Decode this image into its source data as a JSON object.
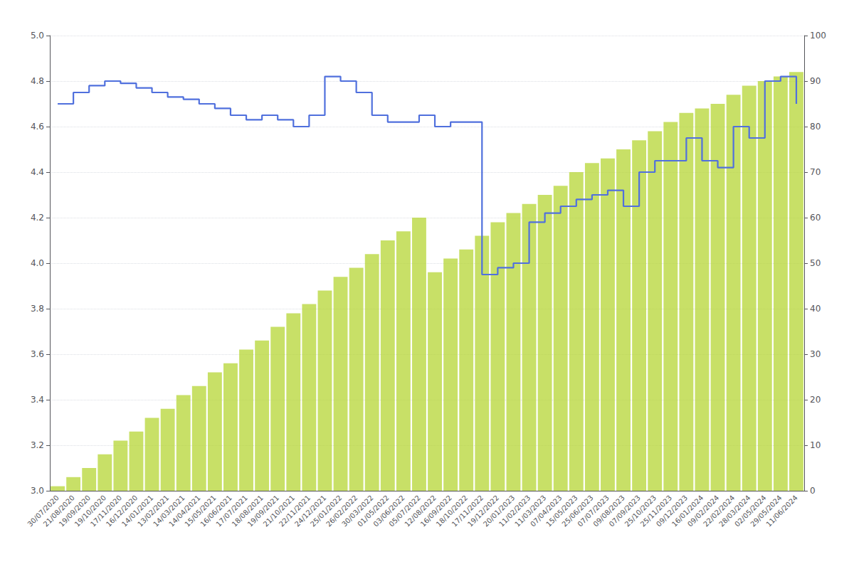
{
  "chart_data": {
    "type": "combo",
    "categories": [
      "30/07/2020",
      "21/08/2020",
      "19/09/2020",
      "19/10/2020",
      "17/11/2020",
      "16/12/2020",
      "14/01/2021",
      "13/02/2021",
      "14/03/2021",
      "14/04/2021",
      "15/05/2021",
      "16/06/2021",
      "17/07/2021",
      "18/08/2021",
      "19/09/2021",
      "21/10/2021",
      "22/11/2021",
      "24/12/2021",
      "25/01/2022",
      "26/02/2022",
      "30/03/2022",
      "01/05/2022",
      "03/06/2022",
      "05/07/2022",
      "12/08/2022",
      "16/09/2022",
      "18/10/2022",
      "17/11/2022",
      "19/12/2022",
      "20/01/2023",
      "11/02/2023",
      "11/03/2023",
      "07/04/2023",
      "15/05/2023",
      "25/06/2023",
      "07/07/2023",
      "09/08/2023",
      "07/09/2023",
      "25/10/2023",
      "25/11/2023",
      "09/12/2023",
      "16/01/2024",
      "09/02/2024",
      "22/02/2024",
      "28/03/2024",
      "02/05/2024",
      "29/05/2024",
      "11/06/2024"
    ],
    "series": [
      {
        "type": "step",
        "values": [
          4.7,
          4.75,
          4.78,
          4.8,
          4.79,
          4.77,
          4.75,
          4.73,
          4.72,
          4.7,
          4.68,
          4.65,
          4.63,
          4.65,
          4.63,
          4.6,
          4.65,
          4.82,
          4.8,
          4.75,
          4.65,
          4.62,
          4.62,
          4.65,
          4.6,
          4.62,
          4.62,
          3.95,
          3.98,
          4.0,
          4.18,
          4.22,
          4.25,
          4.28,
          4.3,
          4.32,
          4.25,
          4.4,
          4.45,
          4.45,
          4.55,
          4.45,
          4.42,
          4.6,
          4.55,
          4.8,
          4.82,
          4.7
        ]
      },
      {
        "type": "bar",
        "axis": "y2",
        "values": [
          1,
          3,
          5,
          8,
          11,
          13,
          16,
          18,
          21,
          23,
          26,
          28,
          31,
          33,
          36,
          39,
          41,
          44,
          47,
          49,
          52,
          55,
          57,
          60,
          48,
          51,
          53,
          56,
          59,
          61,
          63,
          65,
          67,
          70,
          72,
          73,
          75,
          77,
          79,
          81,
          83,
          84,
          85,
          87,
          89,
          90,
          91,
          92
        ]
      }
    ],
    "ylim": [
      3.0,
      5.0
    ],
    "yticks": [
      {
        "value": 3.0,
        "label": "3.0"
      },
      3.2,
      3.4,
      3.6,
      3.8,
      {
        "value": 4.0,
        "label": "4.0"
      },
      4.2,
      4.4,
      4.6,
      4.8,
      {
        "value": 5.0,
        "label": "5.0"
      }
    ],
    "y2lim": [
      0,
      100
    ],
    "y2ticks": [
      0,
      10,
      20,
      30,
      40,
      50,
      60,
      70,
      80,
      90,
      100
    ],
    "grid": true
  }
}
